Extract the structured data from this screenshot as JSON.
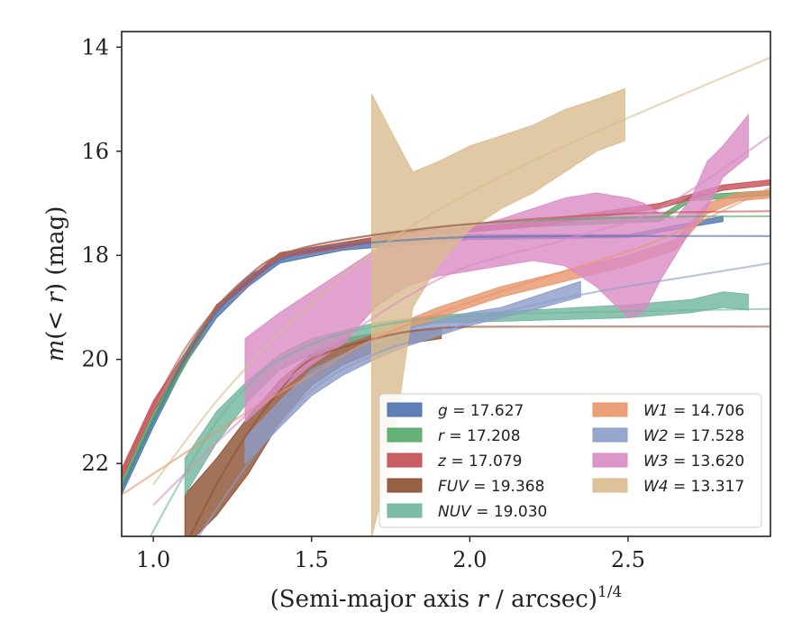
{
  "chart_data": {
    "type": "area",
    "xlabel": "(Semi-major axis r / arcsec)",
    "xlabel_main": "(Semi-major axis ",
    "xlabel_var": "r",
    "xlabel_rest": " / arcsec)",
    "xlabel_sup": "1/4",
    "ylabel_m": "m",
    "ylabel_paren": "(< ",
    "ylabel_r": "r",
    "ylabel_close": ") (mag)",
    "xlim": [
      0.9,
      2.95
    ],
    "ylim": [
      23.4,
      13.7
    ],
    "y_inverted": true,
    "x_ticks": [
      "1.0",
      "1.5",
      "2.0",
      "2.5"
    ],
    "x_tick_values": [
      1.0,
      1.5,
      2.0,
      2.5
    ],
    "y_ticks": [
      "14",
      "16",
      "18",
      "20",
      "22"
    ],
    "y_tick_values": [
      14,
      16,
      18,
      20,
      22
    ],
    "legend_position": "lower-right",
    "legend": [
      {
        "band": "g",
        "label": "= 17.627",
        "color": "#4c72b0"
      },
      {
        "band": "r",
        "label": "= 17.208",
        "color": "#55a868"
      },
      {
        "band": "z",
        "label": "= 17.079",
        "color": "#c44e52"
      },
      {
        "band": "FUV",
        "label": "= 19.368",
        "color": "#8c5030"
      },
      {
        "band": "NUV",
        "label": "= 19.030",
        "color": "#6fb69b"
      },
      {
        "band": "W1",
        "label": "= 14.706",
        "color": "#e8956a"
      },
      {
        "band": "W2",
        "label": "= 17.528",
        "color": "#8c9cc8"
      },
      {
        "band": "W3",
        "label": "= 13.620",
        "color": "#d98bc4"
      },
      {
        "band": "W4",
        "label": "= 13.317",
        "color": "#d9bc8f"
      }
    ],
    "series": [
      {
        "name": "g",
        "color": "#4c72b0",
        "model": [
          [
            0.9,
            22.5
          ],
          [
            1.0,
            21.2
          ],
          [
            1.1,
            20.0
          ],
          [
            1.2,
            19.1
          ],
          [
            1.3,
            18.5
          ],
          [
            1.4,
            18.1
          ],
          [
            1.5,
            17.9
          ],
          [
            1.7,
            17.75
          ],
          [
            2.0,
            17.65
          ],
          [
            2.5,
            17.63
          ],
          [
            2.95,
            17.63
          ]
        ],
        "band": [
          [
            0.9,
            22.4,
            22.6
          ],
          [
            1.0,
            21.1,
            21.3
          ],
          [
            1.1,
            19.9,
            20.1
          ],
          [
            1.2,
            19.0,
            19.2
          ],
          [
            1.3,
            18.4,
            18.6
          ],
          [
            1.4,
            18.05,
            18.15
          ],
          [
            1.6,
            17.8,
            17.9
          ],
          [
            2.0,
            17.6,
            17.7
          ],
          [
            2.5,
            17.6,
            17.66
          ],
          [
            2.8,
            17.25,
            17.35
          ]
        ]
      },
      {
        "name": "r",
        "color": "#55a868",
        "model": [
          [
            0.9,
            22.4
          ],
          [
            1.0,
            21.1
          ],
          [
            1.1,
            19.9
          ],
          [
            1.2,
            19.0
          ],
          [
            1.3,
            18.4
          ],
          [
            1.4,
            18.0
          ],
          [
            1.6,
            17.7
          ],
          [
            2.0,
            17.4
          ],
          [
            2.5,
            17.27
          ],
          [
            2.95,
            17.25
          ]
        ],
        "band": [
          [
            0.9,
            22.3,
            22.5
          ],
          [
            1.0,
            21.0,
            21.2
          ],
          [
            1.2,
            18.95,
            19.05
          ],
          [
            1.4,
            17.95,
            18.05
          ],
          [
            1.8,
            17.55,
            17.65
          ],
          [
            2.2,
            17.35,
            17.45
          ],
          [
            2.6,
            17.25,
            17.35
          ],
          [
            2.7,
            16.85,
            16.95
          ],
          [
            2.95,
            16.75,
            16.85
          ]
        ]
      },
      {
        "name": "z",
        "color": "#c44e52",
        "model": [
          [
            0.9,
            22.2
          ],
          [
            1.0,
            20.9
          ],
          [
            1.1,
            19.8
          ],
          [
            1.2,
            19.0
          ],
          [
            1.3,
            18.4
          ],
          [
            1.4,
            18.0
          ],
          [
            1.6,
            17.7
          ],
          [
            2.0,
            17.4
          ],
          [
            2.5,
            17.2
          ],
          [
            2.95,
            17.15
          ]
        ],
        "band": [
          [
            0.9,
            22.1,
            22.3
          ],
          [
            1.0,
            20.8,
            21.0
          ],
          [
            1.2,
            18.95,
            19.05
          ],
          [
            1.4,
            17.95,
            18.05
          ],
          [
            1.8,
            17.55,
            17.65
          ],
          [
            2.2,
            17.35,
            17.45
          ],
          [
            2.6,
            17.0,
            17.1
          ],
          [
            2.8,
            16.65,
            16.75
          ],
          [
            2.95,
            16.55,
            16.65
          ]
        ]
      },
      {
        "name": "FUV",
        "color": "#8c5030",
        "model": [
          [
            1.1,
            23.6
          ],
          [
            1.2,
            22.4
          ],
          [
            1.3,
            21.4
          ],
          [
            1.4,
            20.6
          ],
          [
            1.5,
            20.0
          ],
          [
            1.7,
            19.6
          ],
          [
            1.9,
            19.4
          ],
          [
            2.2,
            19.37
          ],
          [
            2.95,
            19.37
          ]
        ],
        "band": [
          [
            1.1,
            22.6,
            23.6
          ],
          [
            1.2,
            21.9,
            23.0
          ],
          [
            1.3,
            21.1,
            22.2
          ],
          [
            1.4,
            20.4,
            21.2
          ],
          [
            1.5,
            19.9,
            20.5
          ],
          [
            1.6,
            19.6,
            20.1
          ],
          [
            1.7,
            19.5,
            19.85
          ],
          [
            1.8,
            19.45,
            19.7
          ],
          [
            1.91,
            19.42,
            19.6
          ]
        ]
      },
      {
        "name": "NUV",
        "color": "#6fb69b",
        "model": [
          [
            0.9,
            24.5
          ],
          [
            1.0,
            23.3
          ],
          [
            1.1,
            22.2
          ],
          [
            1.2,
            21.2
          ],
          [
            1.3,
            20.5
          ],
          [
            1.4,
            20.0
          ],
          [
            1.6,
            19.5
          ],
          [
            1.9,
            19.2
          ],
          [
            2.3,
            19.1
          ],
          [
            2.95,
            19.03
          ]
        ],
        "band": [
          [
            1.1,
            21.9,
            22.6
          ],
          [
            1.2,
            21.0,
            21.6
          ],
          [
            1.3,
            20.4,
            20.8
          ],
          [
            1.4,
            19.9,
            20.2
          ],
          [
            1.5,
            19.6,
            19.9
          ],
          [
            1.7,
            19.3,
            19.5
          ],
          [
            1.9,
            19.15,
            19.3
          ],
          [
            2.2,
            19.05,
            19.25
          ],
          [
            2.5,
            18.95,
            19.2
          ],
          [
            2.7,
            18.85,
            19.1
          ],
          [
            2.8,
            18.7,
            19.0
          ],
          [
            2.88,
            18.75,
            19.05
          ]
        ]
      },
      {
        "name": "W1",
        "color": "#e8956a",
        "model": [
          [
            0.9,
            22.6
          ],
          [
            1.1,
            21.8
          ],
          [
            1.3,
            21.0
          ],
          [
            1.5,
            20.3
          ],
          [
            1.7,
            19.6
          ],
          [
            2.0,
            18.9
          ],
          [
            2.3,
            18.3
          ],
          [
            2.6,
            17.7
          ],
          [
            2.95,
            16.7
          ]
        ],
        "band": [
          [
            1.7,
            19.5,
            19.7
          ],
          [
            1.9,
            19.0,
            19.2
          ],
          [
            2.1,
            18.6,
            18.8
          ],
          [
            2.3,
            18.3,
            18.5
          ],
          [
            2.5,
            18.0,
            18.2
          ],
          [
            2.65,
            17.7,
            17.9
          ],
          [
            2.75,
            17.0,
            17.2
          ],
          [
            2.85,
            16.8,
            16.95
          ],
          [
            2.95,
            16.75,
            16.9
          ]
        ]
      },
      {
        "name": "W2",
        "color": "#8c9cc8",
        "model": [
          [
            1.1,
            23.8
          ],
          [
            1.3,
            22.0
          ],
          [
            1.5,
            20.6
          ],
          [
            1.7,
            19.9
          ],
          [
            1.9,
            19.5
          ],
          [
            2.1,
            19.1
          ],
          [
            2.4,
            18.7
          ],
          [
            2.7,
            18.4
          ],
          [
            2.95,
            18.15
          ]
        ],
        "band": [
          [
            1.29,
            21.5,
            22.0
          ],
          [
            1.4,
            20.8,
            21.3
          ],
          [
            1.5,
            20.2,
            20.7
          ],
          [
            1.6,
            19.9,
            20.3
          ],
          [
            1.7,
            19.6,
            20.0
          ],
          [
            1.8,
            19.4,
            19.75
          ],
          [
            1.9,
            19.25,
            19.55
          ],
          [
            2.0,
            19.1,
            19.35
          ],
          [
            2.1,
            19.0,
            19.2
          ],
          [
            2.2,
            18.8,
            19.05
          ],
          [
            2.35,
            18.5,
            18.8
          ]
        ]
      },
      {
        "name": "W3",
        "color": "#d98bc4",
        "model": [
          [
            1.0,
            22.8
          ],
          [
            1.2,
            21.6
          ],
          [
            1.4,
            20.5
          ],
          [
            1.6,
            19.6
          ],
          [
            1.8,
            18.8
          ],
          [
            2.0,
            18.2
          ],
          [
            2.3,
            17.7
          ],
          [
            2.6,
            17.1
          ],
          [
            2.95,
            15.7
          ]
        ],
        "band": [
          [
            1.29,
            19.6,
            21.2
          ],
          [
            1.4,
            19.1,
            20.6
          ],
          [
            1.5,
            18.7,
            20.1
          ],
          [
            1.6,
            18.3,
            19.7
          ],
          [
            1.7,
            17.9,
            19.0
          ],
          [
            1.8,
            17.6,
            18.6
          ],
          [
            1.9,
            17.5,
            18.4
          ],
          [
            2.0,
            17.45,
            18.3
          ],
          [
            2.1,
            17.3,
            18.2
          ],
          [
            2.2,
            17.1,
            18.1
          ],
          [
            2.3,
            16.9,
            18.2
          ],
          [
            2.4,
            16.8,
            18.6
          ],
          [
            2.5,
            16.9,
            19.2
          ],
          [
            2.55,
            17.0,
            19.1
          ],
          [
            2.6,
            17.2,
            18.5
          ],
          [
            2.65,
            17.3,
            18.0
          ],
          [
            2.7,
            16.9,
            17.5
          ],
          [
            2.75,
            16.2,
            17.1
          ],
          [
            2.8,
            15.9,
            16.5
          ],
          [
            2.88,
            15.3,
            16.1
          ]
        ]
      },
      {
        "name": "W4",
        "color": "#d9bc8f",
        "model": [
          [
            1.0,
            22.4
          ],
          [
            1.2,
            20.8
          ],
          [
            1.4,
            19.5
          ],
          [
            1.6,
            18.4
          ],
          [
            1.8,
            17.5
          ],
          [
            2.0,
            16.8
          ],
          [
            2.3,
            15.9
          ],
          [
            2.6,
            15.1
          ],
          [
            2.95,
            14.2
          ]
        ],
        "band": [
          [
            1.69,
            14.9,
            23.4
          ],
          [
            1.75,
            15.6,
            22.0
          ],
          [
            1.82,
            16.4,
            19.0
          ],
          [
            1.9,
            16.2,
            18.2
          ],
          [
            2.0,
            15.9,
            17.5
          ],
          [
            2.1,
            15.7,
            17.1
          ],
          [
            2.2,
            15.5,
            16.8
          ],
          [
            2.3,
            15.2,
            16.4
          ],
          [
            2.4,
            15.0,
            16.0
          ],
          [
            2.49,
            14.8,
            15.8
          ]
        ]
      }
    ]
  }
}
